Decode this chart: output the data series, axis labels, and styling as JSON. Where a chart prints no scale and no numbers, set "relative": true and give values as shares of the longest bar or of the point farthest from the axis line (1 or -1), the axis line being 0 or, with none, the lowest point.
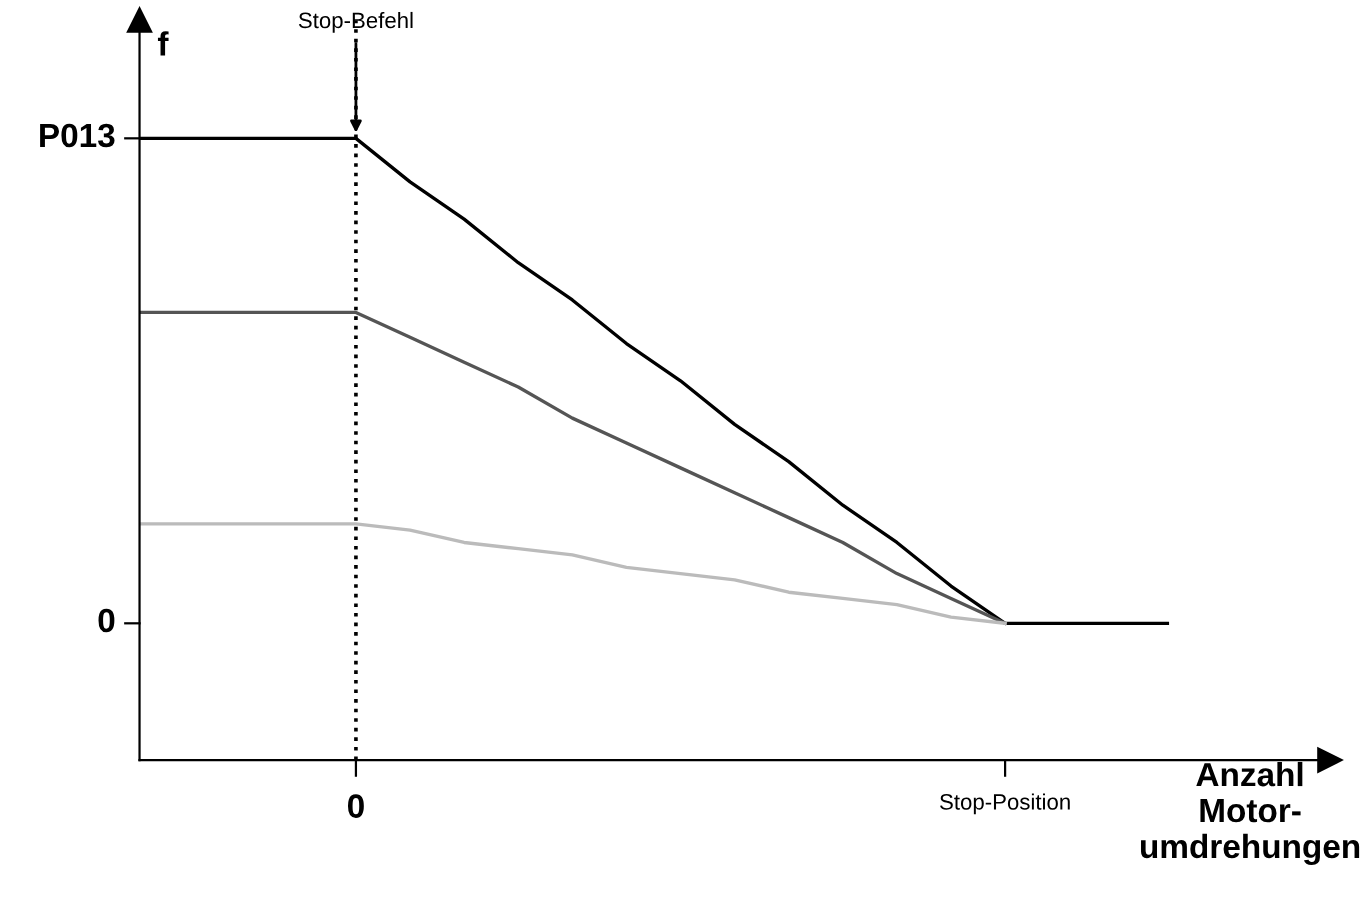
{
  "chart_data": {
    "type": "line",
    "xlabel": "Anzahl\nMotor-\numdrehungen",
    "ylabel": "f",
    "relative": true,
    "categories": [
      null,
      null,
      null,
      null,
      "0",
      null,
      null,
      null,
      null,
      null,
      null,
      null,
      null,
      null,
      null,
      null,
      "Stop-Position",
      null,
      null,
      null,
      null,
      null,
      null
    ],
    "series": [
      {
        "color": "#000000",
        "values": [
          1,
          1,
          1,
          1,
          1,
          0.93,
          0.87,
          0.8,
          0.74,
          0.67,
          0.61,
          0.54,
          0.48,
          0.41,
          0.35,
          0.28,
          0.22,
          0.22,
          0.22,
          0.22,
          null,
          null,
          null
        ]
      },
      {
        "color": "#555555",
        "values": [
          0.72,
          0.72,
          0.72,
          0.72,
          0.72,
          0.68,
          0.64,
          0.6,
          0.55,
          0.51,
          0.47,
          0.43,
          0.39,
          0.35,
          0.3,
          0.26,
          0.22,
          null,
          null,
          null,
          null,
          null,
          null
        ]
      },
      {
        "color": "#bbbbbb",
        "values": [
          0.38,
          0.38,
          0.38,
          0.38,
          0.38,
          0.37,
          0.35,
          0.34,
          0.33,
          0.31,
          0.3,
          0.29,
          0.27,
          0.26,
          0.25,
          0.23,
          0.22,
          null,
          null,
          null,
          null,
          null,
          null
        ]
      }
    ],
    "annotations": [
      "P013",
      "0"
    ],
    "ref_lines": [
      {
        "axis": "x",
        "value": "0",
        "label": "Stop-Befehl",
        "line_style": "dotted",
        "color": "#000000"
      }
    ],
    "grid": false,
    "legend": false,
    "marker": "none",
    "line_style": "solid"
  }
}
